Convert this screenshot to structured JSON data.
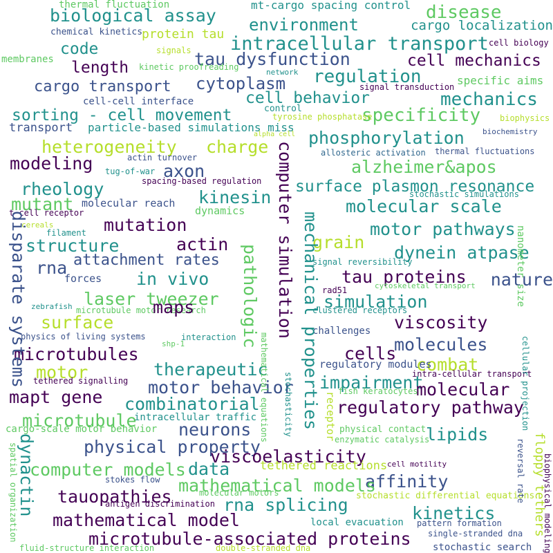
{
  "words": [
    "thermal fluctuation",
    "mt-cargo spacing control",
    "biological assay",
    "disease",
    "environment",
    "cargo localization",
    "chemical kinetics",
    "protein tau",
    "cell biology",
    "code",
    "intracellular transport",
    "signals",
    "membranes",
    "tau dysfunction",
    "kinetic proofreading",
    "network",
    "cell mechanics",
    "length",
    "regulation",
    "cytoplasm",
    "cargo transport",
    "specific aims",
    "signal transduction",
    "cell behavior",
    "mechanics",
    "cell-cell interface",
    "control",
    "sorting - cell movement",
    "specificity",
    "tyrosine phosphatase",
    "biophysics",
    "transport",
    "particle-based simulations miss",
    "phosphorylation",
    "biochemistry",
    "alpha cell",
    "heterogeneity",
    "charge",
    "actin turnover",
    "allosteric activation",
    "thermal fluctuations",
    "modeling",
    "alzheimer&apos",
    "tug-of-war",
    "axon",
    "spacing-based regulation",
    "surface plasmon resonance",
    "rheology",
    "kinesin",
    "stochastic simulations",
    "mutant",
    "molecular reach",
    "molecular scale",
    "t cell receptor",
    "dynamics",
    "cereals",
    "filament",
    "mutation",
    "motor pathways",
    "grain",
    "actin",
    "structure",
    "dynein atpase",
    "rna",
    "attachment rates",
    "signal reversibility",
    "in vivo",
    "forces",
    "tau proteins",
    "cytoskeletal transport",
    "laser tweezer",
    "simulation",
    "nature",
    "rad51",
    "zebrafish",
    "microtubule motor research",
    "clustered receptors",
    "surface",
    "maps",
    "viscosity",
    "physics of living systems",
    "interaction",
    "challenges",
    "shp-1",
    "cells",
    "molecules",
    "microtubules",
    "motor",
    "therapeutic",
    "combat",
    "regulatory modules",
    "tethered signalling",
    "intra-cellular transport",
    "impairment",
    "motor behavior",
    "molecular",
    "mapt gene",
    "fish keratocytes",
    "combinatorial",
    "regulatory pathway",
    "microtubule",
    "intracellular traffic",
    "neurons",
    "cargo-scale motor behavior",
    "physical property",
    "lipids",
    "physical contact",
    "enzymatic catalysis",
    "viscoelasticity",
    "computer models",
    "data",
    "tethered reactions",
    "cell motility",
    "affinity",
    "stokes flow",
    "mathematical models",
    "molecular motors",
    "tauopathies",
    "rna splicing",
    "stochastic differential equations",
    "antigen discrimination",
    "mathematical model",
    "kinetics",
    "local evacuation",
    "pattern formation",
    "microtubule-associated proteins",
    "single-stranded dna",
    "fluid-structure interaction",
    "double-stranded dna",
    "stochastic search",
    "disparate systems",
    "dynactin",
    "spatial organization",
    "pathologic",
    "computer simulation",
    "mechanical properties",
    "receptor",
    "stochasticity",
    "mathematical equations",
    "reversal rate",
    "floppy tethers",
    "biophysical modeling",
    "nanometer size",
    "cellular projection"
  ]
}
